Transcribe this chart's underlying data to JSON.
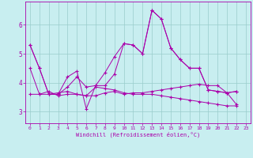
{
  "xlabel": "Windchill (Refroidissement éolien,°C)",
  "background_color": "#c8eef0",
  "line_color": "#aa00aa",
  "grid_color": "#99cccc",
  "xlim": [
    -0.5,
    23.5
  ],
  "ylim": [
    2.6,
    6.8
  ],
  "yticks": [
    3,
    4,
    5,
    6
  ],
  "xticks": [
    0,
    1,
    2,
    3,
    4,
    5,
    6,
    7,
    8,
    9,
    10,
    11,
    12,
    13,
    14,
    15,
    16,
    17,
    18,
    19,
    20,
    21,
    22,
    23
  ],
  "series": [
    [
      5.3,
      4.5,
      3.6,
      3.6,
      4.2,
      4.4,
      3.1,
      3.9,
      3.9,
      4.3,
      5.35,
      5.3,
      5.0,
      6.5,
      6.2,
      5.2,
      4.8,
      4.5,
      4.5,
      3.75,
      3.7,
      3.65,
      3.7
    ],
    [
      4.5,
      3.6,
      3.7,
      3.55,
      3.6,
      3.6,
      3.55,
      3.55,
      3.65,
      3.7,
      3.6,
      3.65,
      3.65,
      3.7,
      3.75,
      3.8,
      3.85,
      3.9,
      3.95,
      3.9,
      3.9,
      3.65,
      3.25
    ],
    [
      5.3,
      4.5,
      3.6,
      3.65,
      3.7,
      3.6,
      3.55,
      3.85,
      3.8,
      3.75,
      3.65,
      3.6,
      3.6,
      3.6,
      3.55,
      3.5,
      3.45,
      3.4,
      3.35,
      3.3,
      3.25,
      3.2,
      3.2
    ],
    [
      3.6,
      3.6,
      3.6,
      3.6,
      3.85,
      4.2,
      3.85,
      3.9,
      4.35,
      4.9,
      5.35,
      5.3,
      5.0,
      6.5,
      6.2,
      5.2,
      4.8,
      4.5,
      4.5,
      3.75,
      3.7,
      3.65,
      3.7
    ]
  ]
}
